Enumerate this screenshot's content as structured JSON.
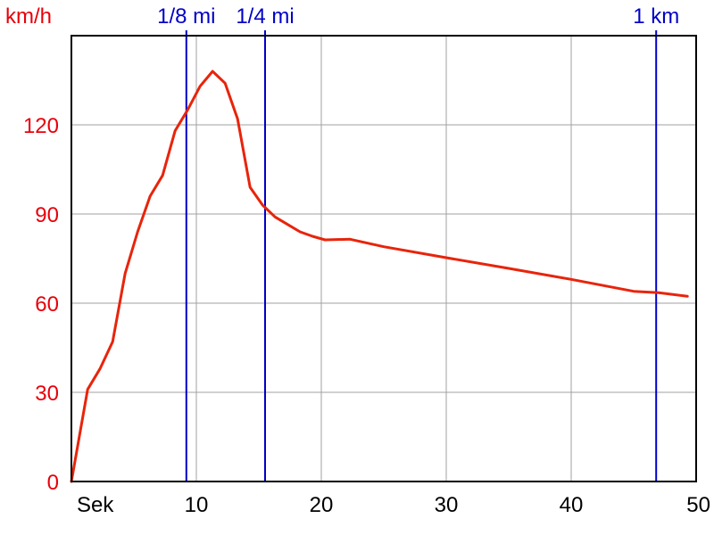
{
  "chart_data": {
    "type": "line",
    "ylabel": "km/h",
    "xlabel": "Sek",
    "xlim": [
      0,
      50
    ],
    "ylim": [
      0,
      150
    ],
    "x_ticks": [
      10,
      20,
      30,
      40,
      50
    ],
    "y_ticks": [
      0,
      30,
      60,
      90,
      120
    ],
    "grid": true,
    "colors": {
      "series": "#e8240b",
      "axis_labels": "#e8000b",
      "markers": "#0000c8"
    },
    "markers": [
      {
        "label": "1/8 mi",
        "x": 9.2
      },
      {
        "label": "1/4 mi",
        "x": 15.5
      },
      {
        "label": "1 km",
        "x": 46.8
      }
    ],
    "series": [
      {
        "x": [
          0,
          1.3,
          2.3,
          3.3,
          4.3,
          5.3,
          6.3,
          7.3,
          8.3,
          9.3,
          10.3,
          11.3,
          12.3,
          13.3,
          14.3,
          15.3,
          16.3,
          17.3,
          18.3,
          19.3,
          20.3,
          22.3,
          25,
          30,
          35,
          40,
          45,
          47,
          49.3
        ],
        "y": [
          0,
          31,
          38,
          47,
          70,
          84,
          96,
          103,
          118,
          125,
          133,
          138,
          134,
          122,
          99,
          93,
          89,
          86.5,
          84,
          82.5,
          81.3,
          81.5,
          79,
          75.3,
          71.7,
          68,
          64,
          63.5,
          62.3
        ]
      }
    ]
  }
}
